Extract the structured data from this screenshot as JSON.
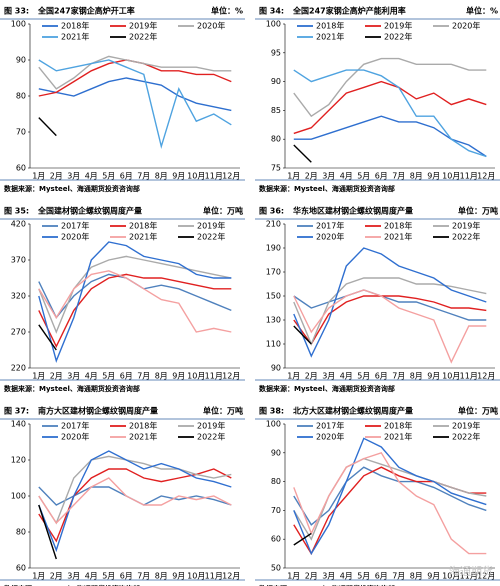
{
  "chart_data": [
    {
      "type": "line",
      "figure": "图 33:",
      "title": "全国247家钢企高炉开工率",
      "unit": "单位：%",
      "source": "数据来源：Mysteel、海通期货投资咨询部",
      "categories": [
        "1月",
        "2月",
        "3月",
        "4月",
        "5月",
        "6月",
        "7月",
        "8月",
        "9月",
        "10月",
        "11月",
        "12月"
      ],
      "ylim": [
        60,
        100
      ],
      "yticks": [
        60,
        70,
        80,
        90,
        100
      ],
      "series": [
        {
          "name": "2018年",
          "color": "#2e6fcf",
          "values": [
            82,
            81,
            80,
            82,
            84,
            85,
            84,
            83,
            80,
            78,
            77,
            76
          ]
        },
        {
          "name": "2019年",
          "color": "#e02020",
          "values": [
            80,
            81,
            84,
            87,
            89,
            90,
            89,
            87,
            87,
            86,
            86,
            84
          ]
        },
        {
          "name": "2020年",
          "color": "#aaaaaa",
          "values": [
            88,
            82,
            85,
            89,
            91,
            90,
            89,
            88,
            88,
            88,
            87,
            87
          ]
        },
        {
          "name": "2021年",
          "color": "#4fa3e0",
          "values": [
            90,
            87,
            88,
            89,
            90,
            88,
            86,
            66,
            82,
            73,
            75,
            72
          ]
        },
        {
          "name": "2022年",
          "color": "#000000",
          "values": [
            74,
            69,
            null,
            null,
            null,
            null,
            null,
            null,
            null,
            null,
            null,
            null
          ]
        }
      ]
    },
    {
      "type": "line",
      "figure": "图 34:",
      "title": "全国247家钢企高炉产能利用率",
      "unit": "单位：%",
      "source": "数据来源：Mysteel、海通期货投资咨询部",
      "categories": [
        "1月",
        "2月",
        "3月",
        "4月",
        "5月",
        "6月",
        "7月",
        "8月",
        "9月",
        "10月",
        "11月",
        "12月"
      ],
      "ylim": [
        75,
        100
      ],
      "yticks": [
        75,
        80,
        85,
        90,
        95,
        100
      ],
      "series": [
        {
          "name": "2018年",
          "color": "#2e6fcf",
          "values": [
            80,
            80,
            81,
            82,
            83,
            84,
            83,
            83,
            82,
            80,
            79,
            77
          ]
        },
        {
          "name": "2019年",
          "color": "#e02020",
          "values": [
            81,
            82,
            85,
            88,
            89,
            90,
            89,
            87,
            88,
            86,
            87,
            86
          ]
        },
        {
          "name": "2020年",
          "color": "#aaaaaa",
          "values": [
            88,
            84,
            86,
            90,
            93,
            94,
            94,
            93,
            93,
            93,
            92,
            92
          ]
        },
        {
          "name": "2021年",
          "color": "#4fa3e0",
          "values": [
            92,
            90,
            91,
            92,
            92,
            91,
            89,
            84,
            84,
            80,
            78,
            77
          ]
        },
        {
          "name": "2022年",
          "color": "#000000",
          "values": [
            79,
            76,
            null,
            null,
            null,
            null,
            null,
            null,
            null,
            null,
            null,
            null
          ]
        }
      ]
    },
    {
      "type": "line",
      "figure": "图 35:",
      "title": "全国建材钢企螺纹钢周度产量",
      "unit": "单位：万吨",
      "source": "数据来源：Mysteel、海通期货投资咨询部",
      "categories": [
        "1月",
        "2月",
        "3月",
        "4月",
        "5月",
        "6月",
        "7月",
        "8月",
        "9月",
        "10月",
        "11月",
        "12月"
      ],
      "ylim": [
        220,
        420
      ],
      "yticks": [
        220,
        270,
        320,
        370,
        420
      ],
      "series": [
        {
          "name": "2017年",
          "color": "#4f81bd",
          "values": [
            340,
            290,
            320,
            340,
            350,
            345,
            330,
            335,
            330,
            320,
            310,
            300
          ]
        },
        {
          "name": "2018年",
          "color": "#e02020",
          "values": [
            300,
            250,
            300,
            330,
            345,
            350,
            345,
            345,
            340,
            335,
            330,
            330
          ]
        },
        {
          "name": "2019年",
          "color": "#aaaaaa",
          "values": [
            330,
            270,
            330,
            360,
            370,
            375,
            370,
            365,
            360,
            355,
            350,
            345
          ]
        },
        {
          "name": "2020年",
          "color": "#2f6fd0",
          "values": [
            320,
            230,
            290,
            370,
            395,
            390,
            375,
            370,
            365,
            350,
            345,
            345
          ]
        },
        {
          "name": "2021年",
          "color": "#f4a0a0",
          "values": [
            330,
            290,
            330,
            350,
            355,
            345,
            330,
            315,
            310,
            270,
            275,
            270
          ]
        },
        {
          "name": "2022年",
          "color": "#000000",
          "values": [
            280,
            245,
            null,
            null,
            null,
            null,
            null,
            null,
            null,
            null,
            null,
            null
          ]
        }
      ]
    },
    {
      "type": "line",
      "figure": "图 36:",
      "title": "华东地区建材钢企螺纹钢周度产量",
      "unit": "单位：万吨",
      "source": "数据来源：Mysteel、海通期货投资咨询部",
      "categories": [
        "1月",
        "2月",
        "3月",
        "4月",
        "5月",
        "6月",
        "7月",
        "8月",
        "9月",
        "10月",
        "11月",
        "12月"
      ],
      "ylim": [
        90,
        210
      ],
      "yticks": [
        90,
        110,
        130,
        150,
        170,
        190,
        210
      ],
      "series": [
        {
          "name": "2017年",
          "color": "#4f81bd",
          "values": [
            150,
            140,
            145,
            150,
            155,
            150,
            145,
            145,
            140,
            135,
            130,
            130
          ]
        },
        {
          "name": "2018年",
          "color": "#e02020",
          "values": [
            130,
            110,
            135,
            145,
            150,
            150,
            150,
            148,
            145,
            140,
            140,
            138
          ]
        },
        {
          "name": "2019年",
          "color": "#aaaaaa",
          "values": [
            145,
            110,
            145,
            160,
            165,
            165,
            165,
            160,
            160,
            158,
            155,
            152
          ]
        },
        {
          "name": "2020年",
          "color": "#2f6fd0",
          "values": [
            135,
            100,
            130,
            175,
            190,
            185,
            175,
            170,
            165,
            155,
            150,
            145
          ]
        },
        {
          "name": "2021年",
          "color": "#f4a0a0",
          "values": [
            150,
            120,
            140,
            150,
            155,
            150,
            140,
            135,
            130,
            95,
            125,
            125
          ]
        },
        {
          "name": "2022年",
          "color": "#000000",
          "values": [
            125,
            110,
            null,
            null,
            null,
            null,
            null,
            null,
            null,
            null,
            null,
            null
          ]
        }
      ]
    },
    {
      "type": "line",
      "figure": "图 37:",
      "title": "南方大区建材钢企螺纹钢周度产量",
      "unit": "单位：万吨",
      "source": "数据来源：Mysteel、海通期货投资咨询部",
      "categories": [
        "1月",
        "2月",
        "3月",
        "4月",
        "5月",
        "6月",
        "7月",
        "8月",
        "9月",
        "10月",
        "11月",
        "12月"
      ],
      "ylim": [
        60,
        140
      ],
      "yticks": [
        60,
        80,
        100,
        120,
        140
      ],
      "series": [
        {
          "name": "2017年",
          "color": "#4f81bd",
          "values": [
            105,
            95,
            100,
            105,
            105,
            100,
            95,
            100,
            98,
            100,
            98,
            95
          ]
        },
        {
          "name": "2018年",
          "color": "#e02020",
          "values": [
            90,
            75,
            100,
            110,
            115,
            115,
            110,
            108,
            110,
            112,
            115,
            110
          ]
        },
        {
          "name": "2019年",
          "color": "#aaaaaa",
          "values": [
            100,
            85,
            110,
            120,
            122,
            120,
            118,
            115,
            115,
            112,
            110,
            112
          ]
        },
        {
          "name": "2020年",
          "color": "#2f6fd0",
          "values": [
            95,
            70,
            100,
            120,
            125,
            120,
            115,
            118,
            115,
            110,
            108,
            105
          ]
        },
        {
          "name": "2021年",
          "color": "#f4a0a0",
          "values": [
            100,
            85,
            95,
            105,
            110,
            100,
            95,
            95,
            100,
            98,
            100,
            95
          ]
        },
        {
          "name": "2022年",
          "color": "#000000",
          "values": [
            95,
            65,
            null,
            null,
            null,
            null,
            null,
            null,
            null,
            null,
            null,
            null
          ]
        }
      ]
    },
    {
      "type": "line",
      "figure": "图 38:",
      "title": "北方大区建材钢企螺纹钢周度产量",
      "unit": "单位：万吨",
      "source": "数据来源：Mysteel、海通期货投资咨询部",
      "watermark": "海通期货",
      "categories": [
        "1月",
        "2月",
        "3月",
        "4月",
        "5月",
        "6月",
        "7月",
        "8月",
        "9月",
        "10月",
        "11月",
        "12月"
      ],
      "ylim": [
        50,
        100
      ],
      "yticks": [
        50,
        60,
        70,
        80,
        90,
        100
      ],
      "series": [
        {
          "name": "2017年",
          "color": "#4f81bd",
          "values": [
            75,
            65,
            70,
            80,
            85,
            82,
            80,
            80,
            78,
            75,
            72,
            70
          ]
        },
        {
          "name": "2018年",
          "color": "#e02020",
          "values": [
            65,
            55,
            68,
            75,
            82,
            85,
            82,
            80,
            80,
            78,
            76,
            76
          ]
        },
        {
          "name": "2019年",
          "color": "#aaaaaa",
          "values": [
            70,
            60,
            75,
            85,
            88,
            86,
            84,
            82,
            80,
            78,
            76,
            75
          ]
        },
        {
          "name": "2020年",
          "color": "#2f6fd0",
          "values": [
            70,
            55,
            65,
            80,
            95,
            92,
            85,
            82,
            80,
            76,
            74,
            72
          ]
        },
        {
          "name": "2021年",
          "color": "#f4a0a0",
          "values": [
            78,
            62,
            75,
            85,
            88,
            90,
            80,
            75,
            72,
            60,
            55,
            55
          ]
        },
        {
          "name": "2022年",
          "color": "#000000",
          "values": [
            58,
            62,
            null,
            null,
            null,
            null,
            null,
            null,
            null,
            null,
            null,
            null
          ]
        }
      ]
    }
  ]
}
